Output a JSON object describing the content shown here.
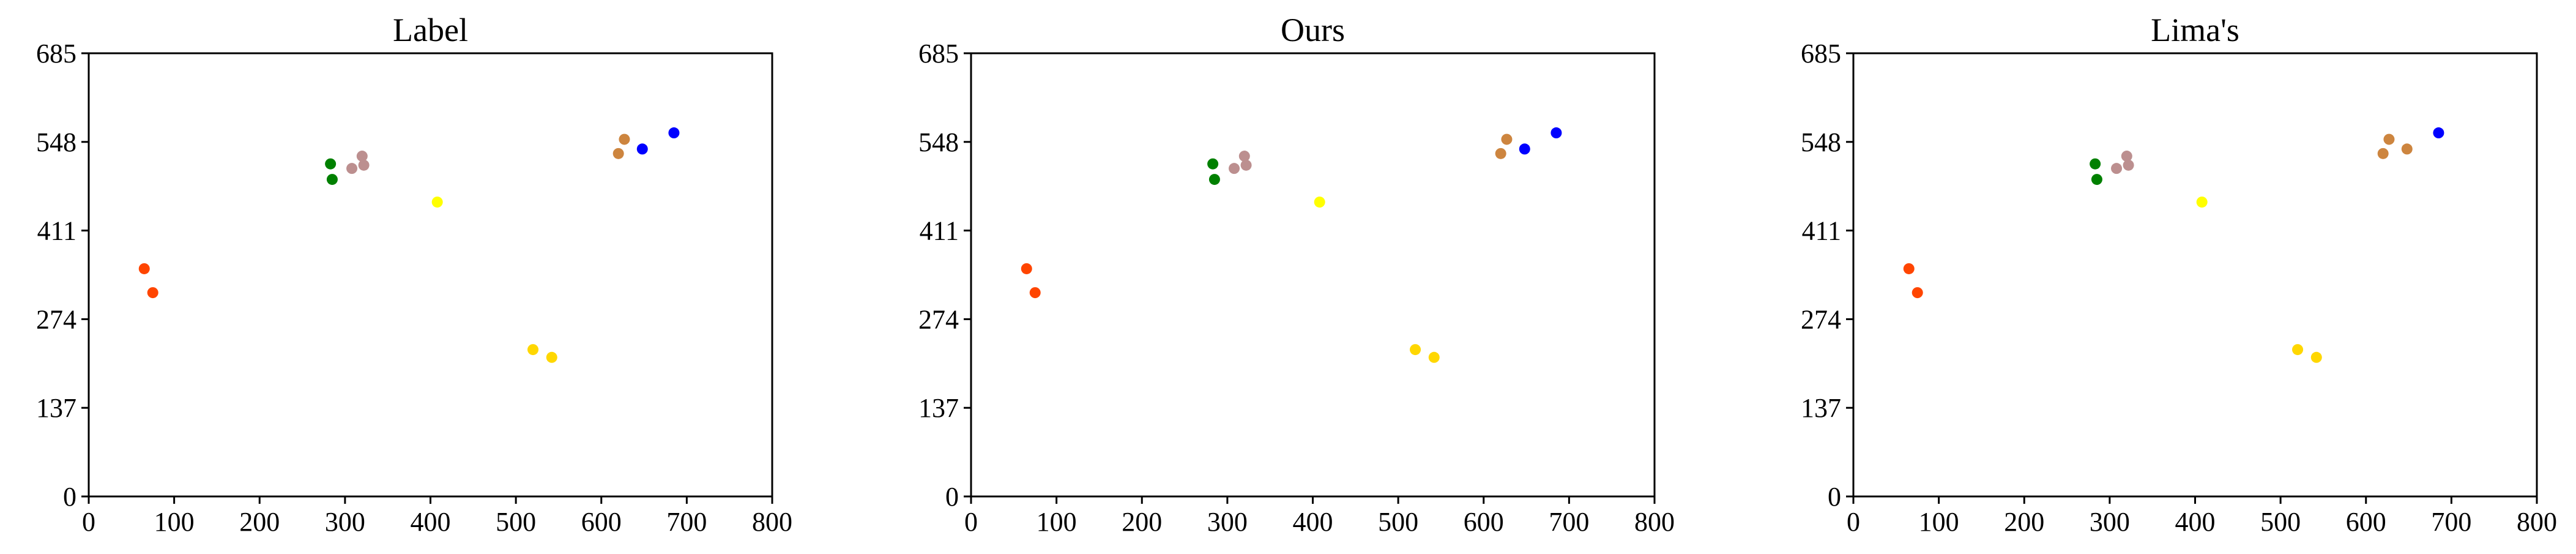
{
  "chart_data": [
    {
      "type": "scatter",
      "title": "Label",
      "xlabel": "",
      "ylabel": "",
      "xlim": [
        0,
        800
      ],
      "ylim": [
        0,
        685
      ],
      "xticks": [
        "0",
        "100",
        "200",
        "300",
        "400",
        "500",
        "600",
        "700",
        "800"
      ],
      "yticks": [
        "0",
        "137",
        "274",
        "411",
        "548",
        "685"
      ],
      "grid": false,
      "points": [
        {
          "x": 65,
          "y": 352,
          "color": "#ff4500"
        },
        {
          "x": 75,
          "y": 315,
          "color": "#ff4500"
        },
        {
          "x": 283,
          "y": 514,
          "color": "#008000"
        },
        {
          "x": 285,
          "y": 490,
          "color": "#008000"
        },
        {
          "x": 308,
          "y": 507,
          "color": "#bc8f8f"
        },
        {
          "x": 320,
          "y": 526,
          "color": "#bc8f8f"
        },
        {
          "x": 322,
          "y": 512,
          "color": "#bc8f8f"
        },
        {
          "x": 408,
          "y": 455,
          "color": "#ffff00"
        },
        {
          "x": 520,
          "y": 227,
          "color": "#ffd700"
        },
        {
          "x": 542,
          "y": 215,
          "color": "#ffd700"
        },
        {
          "x": 620,
          "y": 530,
          "color": "#cd853f"
        },
        {
          "x": 627,
          "y": 552,
          "color": "#cd853f"
        },
        {
          "x": 648,
          "y": 537,
          "color": "#0000ff"
        },
        {
          "x": 685,
          "y": 562,
          "color": "#0000ff"
        }
      ]
    },
    {
      "type": "scatter",
      "title": "Ours",
      "xlabel": "",
      "ylabel": "",
      "xlim": [
        0,
        800
      ],
      "ylim": [
        0,
        685
      ],
      "xticks": [
        "0",
        "100",
        "200",
        "300",
        "400",
        "500",
        "600",
        "700",
        "800"
      ],
      "yticks": [
        "0",
        "137",
        "274",
        "411",
        "548",
        "685"
      ],
      "grid": false,
      "points": [
        {
          "x": 65,
          "y": 352,
          "color": "#ff4500"
        },
        {
          "x": 75,
          "y": 315,
          "color": "#ff4500"
        },
        {
          "x": 283,
          "y": 514,
          "color": "#008000"
        },
        {
          "x": 285,
          "y": 490,
          "color": "#008000"
        },
        {
          "x": 308,
          "y": 507,
          "color": "#bc8f8f"
        },
        {
          "x": 320,
          "y": 526,
          "color": "#bc8f8f"
        },
        {
          "x": 322,
          "y": 512,
          "color": "#bc8f8f"
        },
        {
          "x": 408,
          "y": 455,
          "color": "#ffff00"
        },
        {
          "x": 520,
          "y": 227,
          "color": "#ffd700"
        },
        {
          "x": 542,
          "y": 215,
          "color": "#ffd700"
        },
        {
          "x": 620,
          "y": 530,
          "color": "#cd853f"
        },
        {
          "x": 627,
          "y": 552,
          "color": "#cd853f"
        },
        {
          "x": 648,
          "y": 537,
          "color": "#0000ff"
        },
        {
          "x": 685,
          "y": 562,
          "color": "#0000ff"
        }
      ]
    },
    {
      "type": "scatter",
      "title": "Lima's",
      "xlabel": "",
      "ylabel": "",
      "xlim": [
        0,
        800
      ],
      "ylim": [
        0,
        685
      ],
      "xticks": [
        "0",
        "100",
        "200",
        "300",
        "400",
        "500",
        "600",
        "700",
        "800"
      ],
      "yticks": [
        "0",
        "137",
        "274",
        "411",
        "548",
        "685"
      ],
      "grid": false,
      "points": [
        {
          "x": 65,
          "y": 352,
          "color": "#ff4500"
        },
        {
          "x": 75,
          "y": 315,
          "color": "#ff4500"
        },
        {
          "x": 283,
          "y": 514,
          "color": "#008000"
        },
        {
          "x": 285,
          "y": 490,
          "color": "#008000"
        },
        {
          "x": 308,
          "y": 507,
          "color": "#bc8f8f"
        },
        {
          "x": 320,
          "y": 526,
          "color": "#bc8f8f"
        },
        {
          "x": 322,
          "y": 512,
          "color": "#bc8f8f"
        },
        {
          "x": 408,
          "y": 455,
          "color": "#ffff00"
        },
        {
          "x": 520,
          "y": 227,
          "color": "#ffd700"
        },
        {
          "x": 542,
          "y": 215,
          "color": "#ffd700"
        },
        {
          "x": 620,
          "y": 530,
          "color": "#cd853f"
        },
        {
          "x": 627,
          "y": 552,
          "color": "#cd853f"
        },
        {
          "x": 648,
          "y": 537,
          "color": "#cd853f"
        },
        {
          "x": 685,
          "y": 562,
          "color": "#0000ff"
        }
      ]
    }
  ]
}
